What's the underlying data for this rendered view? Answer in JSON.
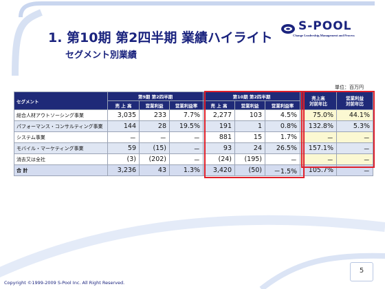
{
  "header": {
    "title": "1. 第10期  第2四半期  業績ハイライト",
    "subtitle": "セグメント別業績"
  },
  "logo": {
    "name": "S-POOL",
    "tagline": "Change Leadership,Management and Process",
    "mark_color": "#1a237e"
  },
  "unit": "単位：百万円",
  "table": {
    "segment_header": "セグメント",
    "group_headers": {
      "period9": "第9期  第2四半期",
      "period10": "第10期  第2四半期",
      "sales_yoy": "売上高\n対前年比",
      "profit_yoy": "営業利益\n対前年比"
    },
    "sub_headers": [
      "売 上 高",
      "営業利益",
      "営業利益率"
    ],
    "rows": [
      {
        "name": "総合人材アウトソーシング事業",
        "p9_sales": "3,035",
        "p9_profit": "233",
        "p9_rate": "7.7%",
        "p10_sales": "2,277",
        "p10_profit": "103",
        "p10_rate": "4.5%",
        "sales_yoy": "75.0%",
        "profit_yoy": "44.1%"
      },
      {
        "name": "パフォーマンス・コンサルティング事業",
        "p9_sales": "144",
        "p9_profit": "28",
        "p9_rate": "19.5%",
        "p10_sales": "191",
        "p10_profit": "1",
        "p10_rate": "0.8%",
        "sales_yoy": "132.8%",
        "profit_yoy": "5.3%"
      },
      {
        "name": "システム事業",
        "p9_sales": "－",
        "p9_profit": "－",
        "p9_rate": "－",
        "p10_sales": "881",
        "p10_profit": "15",
        "p10_rate": "1.7%",
        "sales_yoy": "－",
        "profit_yoy": "－"
      },
      {
        "name": "モバイル・マーケティング事業",
        "p9_sales": "59",
        "p9_profit": "(15)",
        "p9_rate": "－",
        "p10_sales": "93",
        "p10_profit": "24",
        "p10_rate": "26.5%",
        "sales_yoy": "157.1%",
        "profit_yoy": "－"
      },
      {
        "name": "消去又は全社",
        "p9_sales": "(3)",
        "p9_profit": "(202)",
        "p9_rate": "－",
        "p10_sales": "(24)",
        "p10_profit": "(195)",
        "p10_rate": "－",
        "sales_yoy": "－",
        "profit_yoy": "－"
      }
    ],
    "total": {
      "name": "合  計",
      "p9_sales": "3,236",
      "p9_profit": "43",
      "p9_rate": "1.3%",
      "p10_sales": "3,420",
      "p10_profit": "(50)",
      "p10_rate": "－1.5%",
      "sales_yoy": "105.7%",
      "profit_yoy": "－"
    }
  },
  "footer": {
    "page_number": "5",
    "copyright": "Copyright ©1999-2009 S-Pool Inc. All Right Reserved."
  }
}
